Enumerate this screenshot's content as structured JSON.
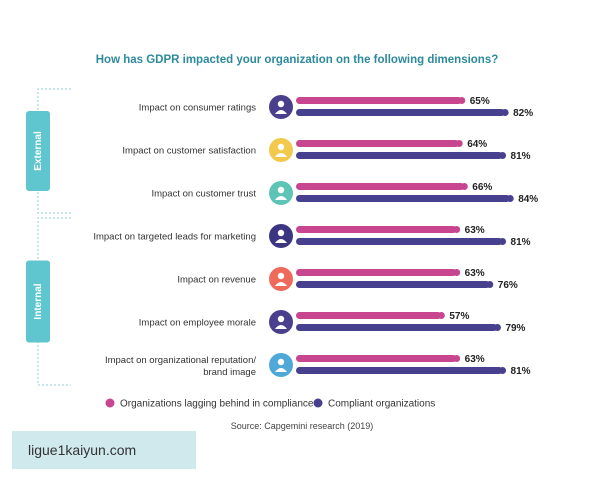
{
  "chart_data": {
    "type": "bar",
    "orientation": "horizontal",
    "title": "How has GDPR impacted your organization on the following dimensions?",
    "categories": [
      [
        "Impact on consumer ratings"
      ],
      [
        "Impact on customer satisfaction"
      ],
      [
        "Impact on customer trust"
      ],
      [
        "Impact on targeted leads for marketing"
      ],
      [
        "Impact on revenue"
      ],
      [
        "Impact on employee morale"
      ],
      [
        "Impact on organizational reputation/",
        "brand image"
      ]
    ],
    "icons": [
      "ratings-icon",
      "satisfaction-icon",
      "trust-icon",
      "target-icon",
      "revenue-icon",
      "morale-icon",
      "reputation-icon"
    ],
    "series": [
      {
        "name": "Organizations lagging behind in compliance",
        "color": "#c8458f",
        "values": [
          65,
          64,
          66,
          63,
          63,
          57,
          63
        ]
      },
      {
        "name": "Compliant organizations",
        "color": "#47408f",
        "values": [
          82,
          81,
          84,
          81,
          76,
          79,
          81
        ]
      }
    ],
    "value_suffix": "%",
    "xlim": [
      0,
      100
    ],
    "groups": [
      {
        "label": "External",
        "range": [
          0,
          2
        ]
      },
      {
        "label": "Internal",
        "range": [
          3,
          6
        ]
      }
    ],
    "source": "Source: Capgemini research (2019)"
  },
  "colors": {
    "title": "#2d8a9c",
    "group_tab": "#5fc5cf",
    "icon_circles": [
      "#4a3f8c",
      "#f2c94c",
      "#5ec4b6",
      "#3c3582",
      "#f06a5c",
      "#4a3f8c",
      "#4fa8d8"
    ]
  },
  "watermark": "ligue1kaiyun.com"
}
